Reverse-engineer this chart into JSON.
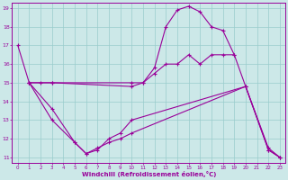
{
  "line1_x": [
    0,
    1,
    2,
    3,
    10,
    11,
    12,
    13,
    14,
    15,
    16,
    17,
    18,
    19,
    20,
    22,
    23
  ],
  "line1_y": [
    17.0,
    15.0,
    15.0,
    15.0,
    15.0,
    15.0,
    15.5,
    16.0,
    16.0,
    16.5,
    16.0,
    16.5,
    16.5,
    16.5,
    14.8,
    11.5,
    11.0
  ],
  "line2_x": [
    1,
    3,
    10,
    11,
    12,
    13,
    14,
    15,
    16,
    17,
    18,
    19
  ],
  "line2_y": [
    15.0,
    15.0,
    14.8,
    15.0,
    15.8,
    18.0,
    18.9,
    19.1,
    18.8,
    18.0,
    17.8,
    16.5
  ],
  "line3_x": [
    1,
    3,
    5,
    6,
    7,
    8,
    9,
    10,
    20,
    22,
    23
  ],
  "line3_y": [
    15.0,
    13.6,
    11.8,
    11.2,
    11.4,
    12.0,
    12.3,
    13.0,
    14.8,
    11.4,
    11.0
  ],
  "line4_x": [
    1,
    3,
    5,
    6,
    7,
    8,
    9,
    10,
    20,
    22,
    23
  ],
  "line4_y": [
    15.0,
    13.0,
    11.8,
    11.2,
    11.5,
    11.8,
    12.0,
    12.3,
    14.8,
    11.4,
    11.0
  ],
  "color": "#990099",
  "bg_color": "#cce8e8",
  "grid_color": "#99cccc",
  "xlabel": "Windchill (Refroidissement éolien,°C)",
  "xlim": [
    -0.5,
    23.5
  ],
  "ylim": [
    10.7,
    19.3
  ],
  "xticks": [
    0,
    1,
    2,
    3,
    4,
    5,
    6,
    7,
    8,
    9,
    10,
    11,
    12,
    13,
    14,
    15,
    16,
    17,
    18,
    19,
    20,
    21,
    22,
    23
  ],
  "yticks": [
    11,
    12,
    13,
    14,
    15,
    16,
    17,
    18,
    19
  ]
}
